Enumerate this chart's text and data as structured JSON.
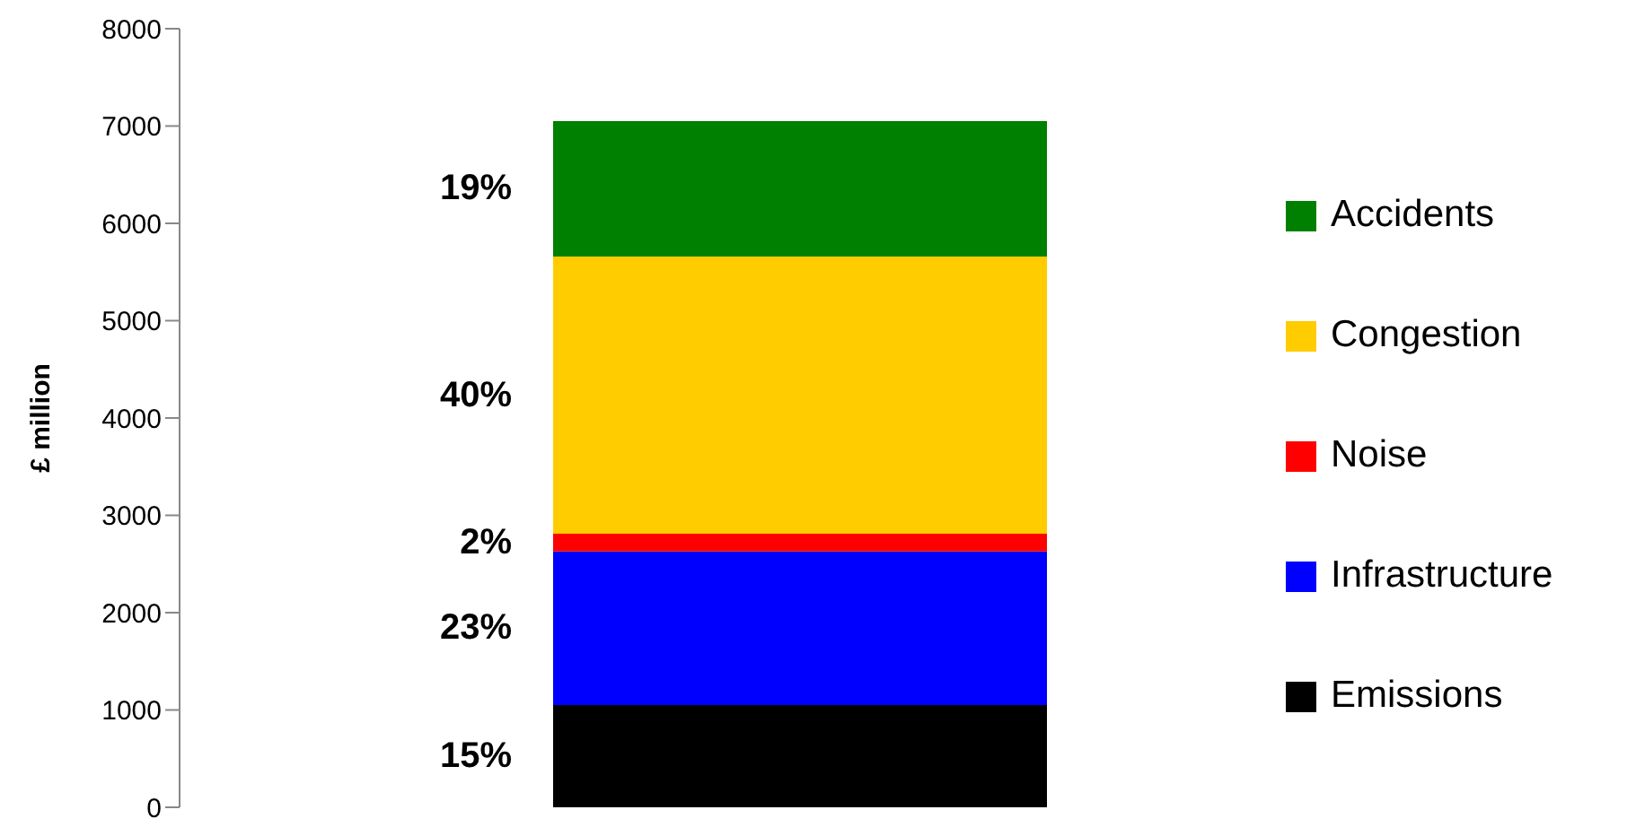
{
  "chart_data": {
    "type": "bar",
    "stacked": true,
    "categories": [
      null
    ],
    "ylabel": "£ million",
    "ylim": [
      0,
      8000
    ],
    "yticks": [
      0,
      1000,
      2000,
      3000,
      4000,
      5000,
      6000,
      7000,
      8000
    ],
    "legend": "right",
    "grid": false,
    "series": [
      {
        "name": "Emissions",
        "color": "#000000",
        "values": [
          1050
        ]
      },
      {
        "name": "Infrastructure",
        "color": "#0000ff",
        "values": [
          1580
        ]
      },
      {
        "name": "Noise",
        "color": "#ff0000",
        "values": [
          180
        ]
      },
      {
        "name": "Congestion",
        "color": "#ffcc00",
        "values": [
          2850
        ]
      },
      {
        "name": "Accidents",
        "color": "#008000",
        "values": [
          1390
        ]
      }
    ],
    "annotations": [
      "15%",
      "23%",
      "2%",
      "40%",
      "19%"
    ]
  }
}
